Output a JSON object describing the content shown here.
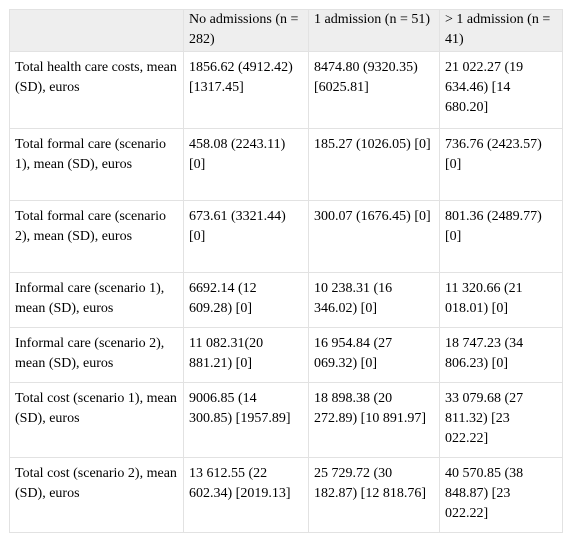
{
  "table": {
    "headers": [
      "",
      "No admissions (n = 282)",
      "1 admission (n = 51)",
      "> 1 admission (n = 41)"
    ],
    "rows": [
      [
        "Total health care costs, mean (SD), euros",
        "1856.62 (4912.42) [1317.45]",
        "8474.80 (9320.35) [6025.81]",
        "21 022.27 (19 634.46) [14 680.20]"
      ],
      [
        "Total formal care (scenario 1), mean (SD), euros",
        "458.08 (2243.11) [0]",
        "185.27 (1026.05) [0]",
        "736.76 (2423.57) [0]"
      ],
      [
        "Total formal care (scenario 2), mean (SD), euros",
        "673.61 (3321.44) [0]",
        "300.07 (1676.45) [0]",
        "801.36 (2489.77) [0]"
      ],
      [
        "Informal care (scenario 1), mean (SD), euros",
        "6692.14 (12 609.28) [0]",
        "10 238.31 (16 346.02) [0]",
        "11 320.66 (21 018.01) [0]"
      ],
      [
        "Informal care (scenario 2), mean (SD), euros",
        "11 082.31(20 881.21) [0]",
        "16 954.84 (27 069.32) [0]",
        "18 747.23 (34 806.23) [0]"
      ],
      [
        "Total cost (scenario 1), mean (SD), euros",
        "9006.85 (14 300.85) [1957.89]",
        "18 898.38 (20 272.89) [10 891.97]",
        "33 079.68 (27 811.32) [23 022.22]"
      ],
      [
        "Total cost (scenario 2), mean (SD), euros",
        "13 612.55 (22 602.34) [2019.13]",
        "25 729.72 (30 182.87) [12 818.76]",
        "40 570.85 (38 848.87) [23 022.22]"
      ]
    ]
  }
}
